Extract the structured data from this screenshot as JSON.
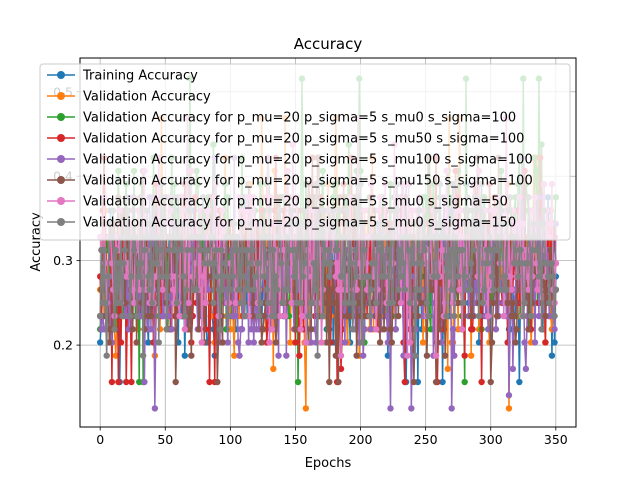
{
  "chart_data": {
    "type": "line",
    "title": "Accuracy",
    "xlabel": "Epochs",
    "ylabel": "Accuracy",
    "xlim": [
      -15.5,
      365.5
    ],
    "ylim": [
      0.103,
      0.54
    ],
    "xticks": [
      0,
      50,
      100,
      150,
      200,
      250,
      300,
      350
    ],
    "yticks": [
      0.2,
      0.3,
      0.4,
      0.5
    ],
    "ytick_labels": [
      "0.2",
      "0.3",
      "0.4",
      "0.5"
    ],
    "grid": true,
    "legend_position": "upper left",
    "n_points": 351,
    "series": [
      {
        "name": "Training Accuracy",
        "color": "#1f77b4",
        "min": 0.141,
        "max": 0.406,
        "mean": 0.29,
        "seed": 11
      },
      {
        "name": "Validation Accuracy",
        "color": "#ff7f0e",
        "min": 0.125,
        "max": 0.47,
        "mean": 0.285,
        "seed": 23
      },
      {
        "name": "Validation Accuracy for p_mu=20 p_sigma=5 s_mu0 s_sigma=100",
        "color": "#2ca02c",
        "min": 0.141,
        "max": 0.531,
        "mean": 0.29,
        "seed": 37
      },
      {
        "name": "Validation Accuracy for p_mu=20 p_sigma=5 s_mu50 s_sigma=100",
        "color": "#d62728",
        "min": 0.141,
        "max": 0.437,
        "mean": 0.285,
        "seed": 41
      },
      {
        "name": "Validation Accuracy for p_mu=20 p_sigma=5 s_mu100 s_sigma=100",
        "color": "#9467bd",
        "min": 0.125,
        "max": 0.422,
        "mean": 0.28,
        "seed": 53
      },
      {
        "name": "Validation Accuracy for p_mu=20 p_sigma=5 s_mu150 s_sigma=100",
        "color": "#8c564b",
        "min": 0.141,
        "max": 0.437,
        "mean": 0.285,
        "seed": 67
      },
      {
        "name": "Validation Accuracy for p_mu=20 p_sigma=5 s_mu0 s_sigma=50",
        "color": "#e377c2",
        "min": 0.172,
        "max": 0.469,
        "mean": 0.3,
        "seed": 79
      },
      {
        "name": "Validation Accuracy for p_mu=20 p_sigma=5 s_mu0 s_sigma=150",
        "color": "#7f7f7f",
        "min": 0.187,
        "max": 0.406,
        "mean": 0.3,
        "seed": 97
      }
    ]
  }
}
